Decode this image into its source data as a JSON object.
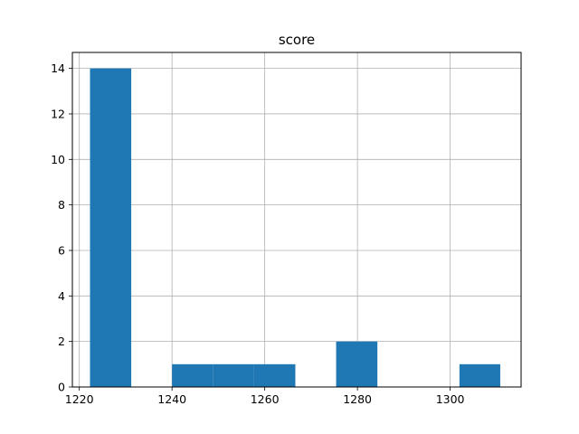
{
  "chart_data": {
    "type": "bar",
    "subtype": "histogram",
    "title": "score",
    "xlabel": "",
    "ylabel": "",
    "xlim": [
      1218.5,
      1315.3
    ],
    "ylim": [
      0,
      14.7
    ],
    "x_ticks": [
      1220,
      1240,
      1260,
      1280,
      1300
    ],
    "y_ticks": [
      0,
      2,
      4,
      6,
      8,
      10,
      12,
      14
    ],
    "grid": true,
    "bar_color": "#1f77b4",
    "bins": [
      {
        "start": 1222.3,
        "end": 1231.2,
        "count": 14
      },
      {
        "start": 1231.2,
        "end": 1240.0,
        "count": 0
      },
      {
        "start": 1240.0,
        "end": 1248.9,
        "count": 1
      },
      {
        "start": 1248.9,
        "end": 1257.7,
        "count": 1
      },
      {
        "start": 1257.7,
        "end": 1266.6,
        "count": 1
      },
      {
        "start": 1266.6,
        "end": 1275.4,
        "count": 0
      },
      {
        "start": 1275.4,
        "end": 1284.3,
        "count": 2
      },
      {
        "start": 1284.3,
        "end": 1293.1,
        "count": 0
      },
      {
        "start": 1293.1,
        "end": 1302.0,
        "count": 0
      },
      {
        "start": 1302.0,
        "end": 1310.8,
        "count": 1
      }
    ]
  }
}
